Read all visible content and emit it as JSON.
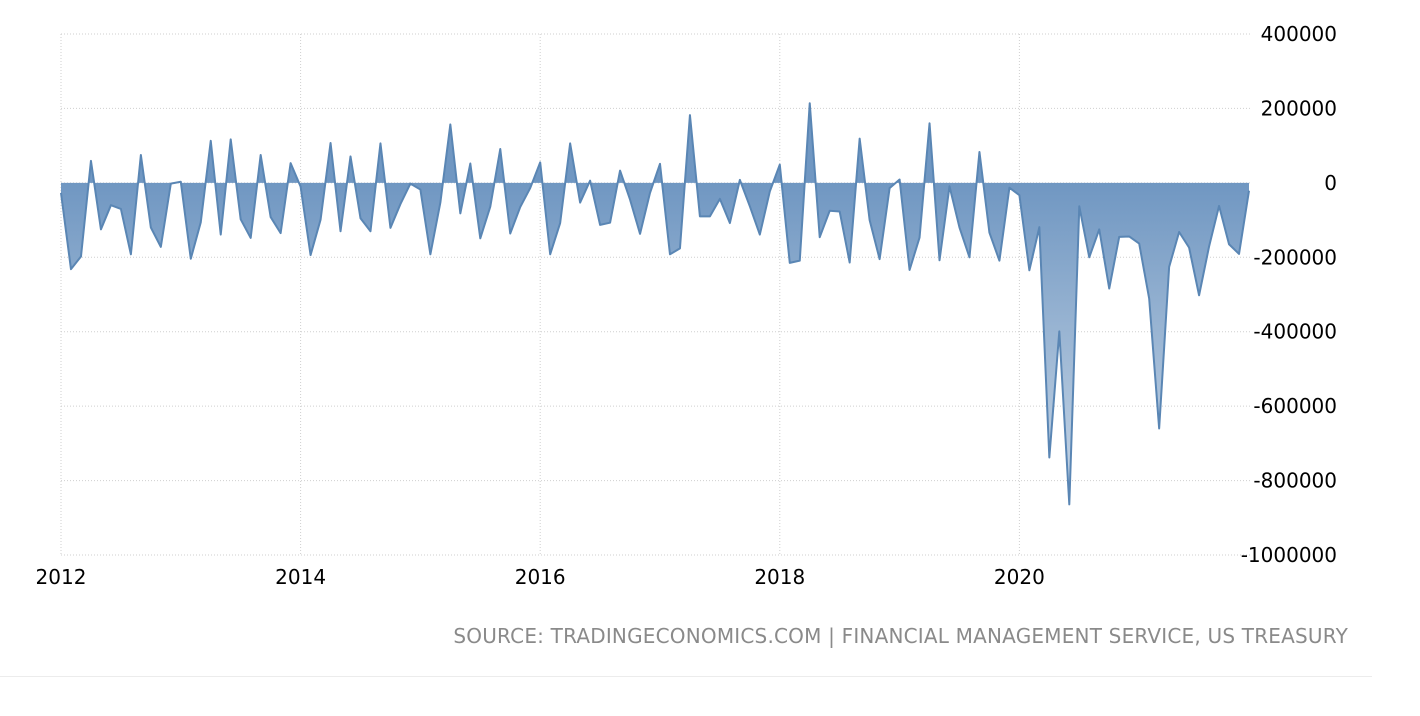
{
  "chart_data": {
    "type": "area",
    "title": "",
    "xlabel": "",
    "ylabel": "",
    "x_start": "2012-01",
    "x_end": "2021-12",
    "x_ticks": [
      "2012",
      "2014",
      "2016",
      "2018",
      "2020"
    ],
    "y_ticks": [
      "400000",
      "200000",
      "0",
      "-200000",
      "-400000",
      "-600000",
      "-800000",
      "-1000000"
    ],
    "ylim": [
      -1000000,
      400000
    ],
    "grid": true,
    "legend": "none",
    "series": [
      {
        "values": [
          -27000,
          -232000,
          -198000,
          59000,
          -125000,
          -60000,
          -70000,
          -192000,
          75000,
          -120000,
          -172000,
          -2000,
          3000,
          -204000,
          -106000,
          113000,
          -139000,
          117000,
          -98000,
          -148000,
          75000,
          -92000,
          -135000,
          53000,
          -10000,
          -194000,
          -99000,
          107000,
          -130000,
          71000,
          -95000,
          -130000,
          106000,
          -121000,
          -57000,
          -2000,
          -18000,
          -192000,
          -53000,
          157000,
          -82000,
          52000,
          -149000,
          -64000,
          91000,
          -136000,
          -65000,
          -14000,
          55000,
          -192000,
          -108000,
          106000,
          -53000,
          6000,
          -113000,
          -107000,
          33000,
          -45000,
          -137000,
          -27000,
          51000,
          -192000,
          -176000,
          182000,
          -90000,
          -90000,
          -43000,
          -108000,
          8000,
          -63000,
          -139000,
          -23000,
          49000,
          -215000,
          -209000,
          214000,
          -146000,
          -75000,
          -77000,
          -214000,
          119000,
          -100000,
          -205000,
          -14000,
          9000,
          -234000,
          -147000,
          160000,
          -208000,
          -9000,
          -120000,
          -200000,
          83000,
          -134000,
          -209000,
          -13000,
          -33000,
          -235000,
          -119000,
          -738000,
          -399000,
          -864000,
          -63000,
          -200000,
          -125000,
          -284000,
          -145000,
          -144000,
          -163000,
          -311000,
          -660000,
          -226000,
          -132000,
          -174000,
          -302000,
          -171000,
          -62000,
          -165000,
          -191000,
          -21000
        ]
      }
    ],
    "colors": {
      "line": "#5a86b4",
      "fill_top": "#7097c2",
      "fill_bottom": "#c9d7e6",
      "grid": "#cfcfcf"
    }
  },
  "source_text": "SOURCE: TRADINGECONOMICS.COM | FINANCIAL MANAGEMENT SERVICE, US TREASURY"
}
